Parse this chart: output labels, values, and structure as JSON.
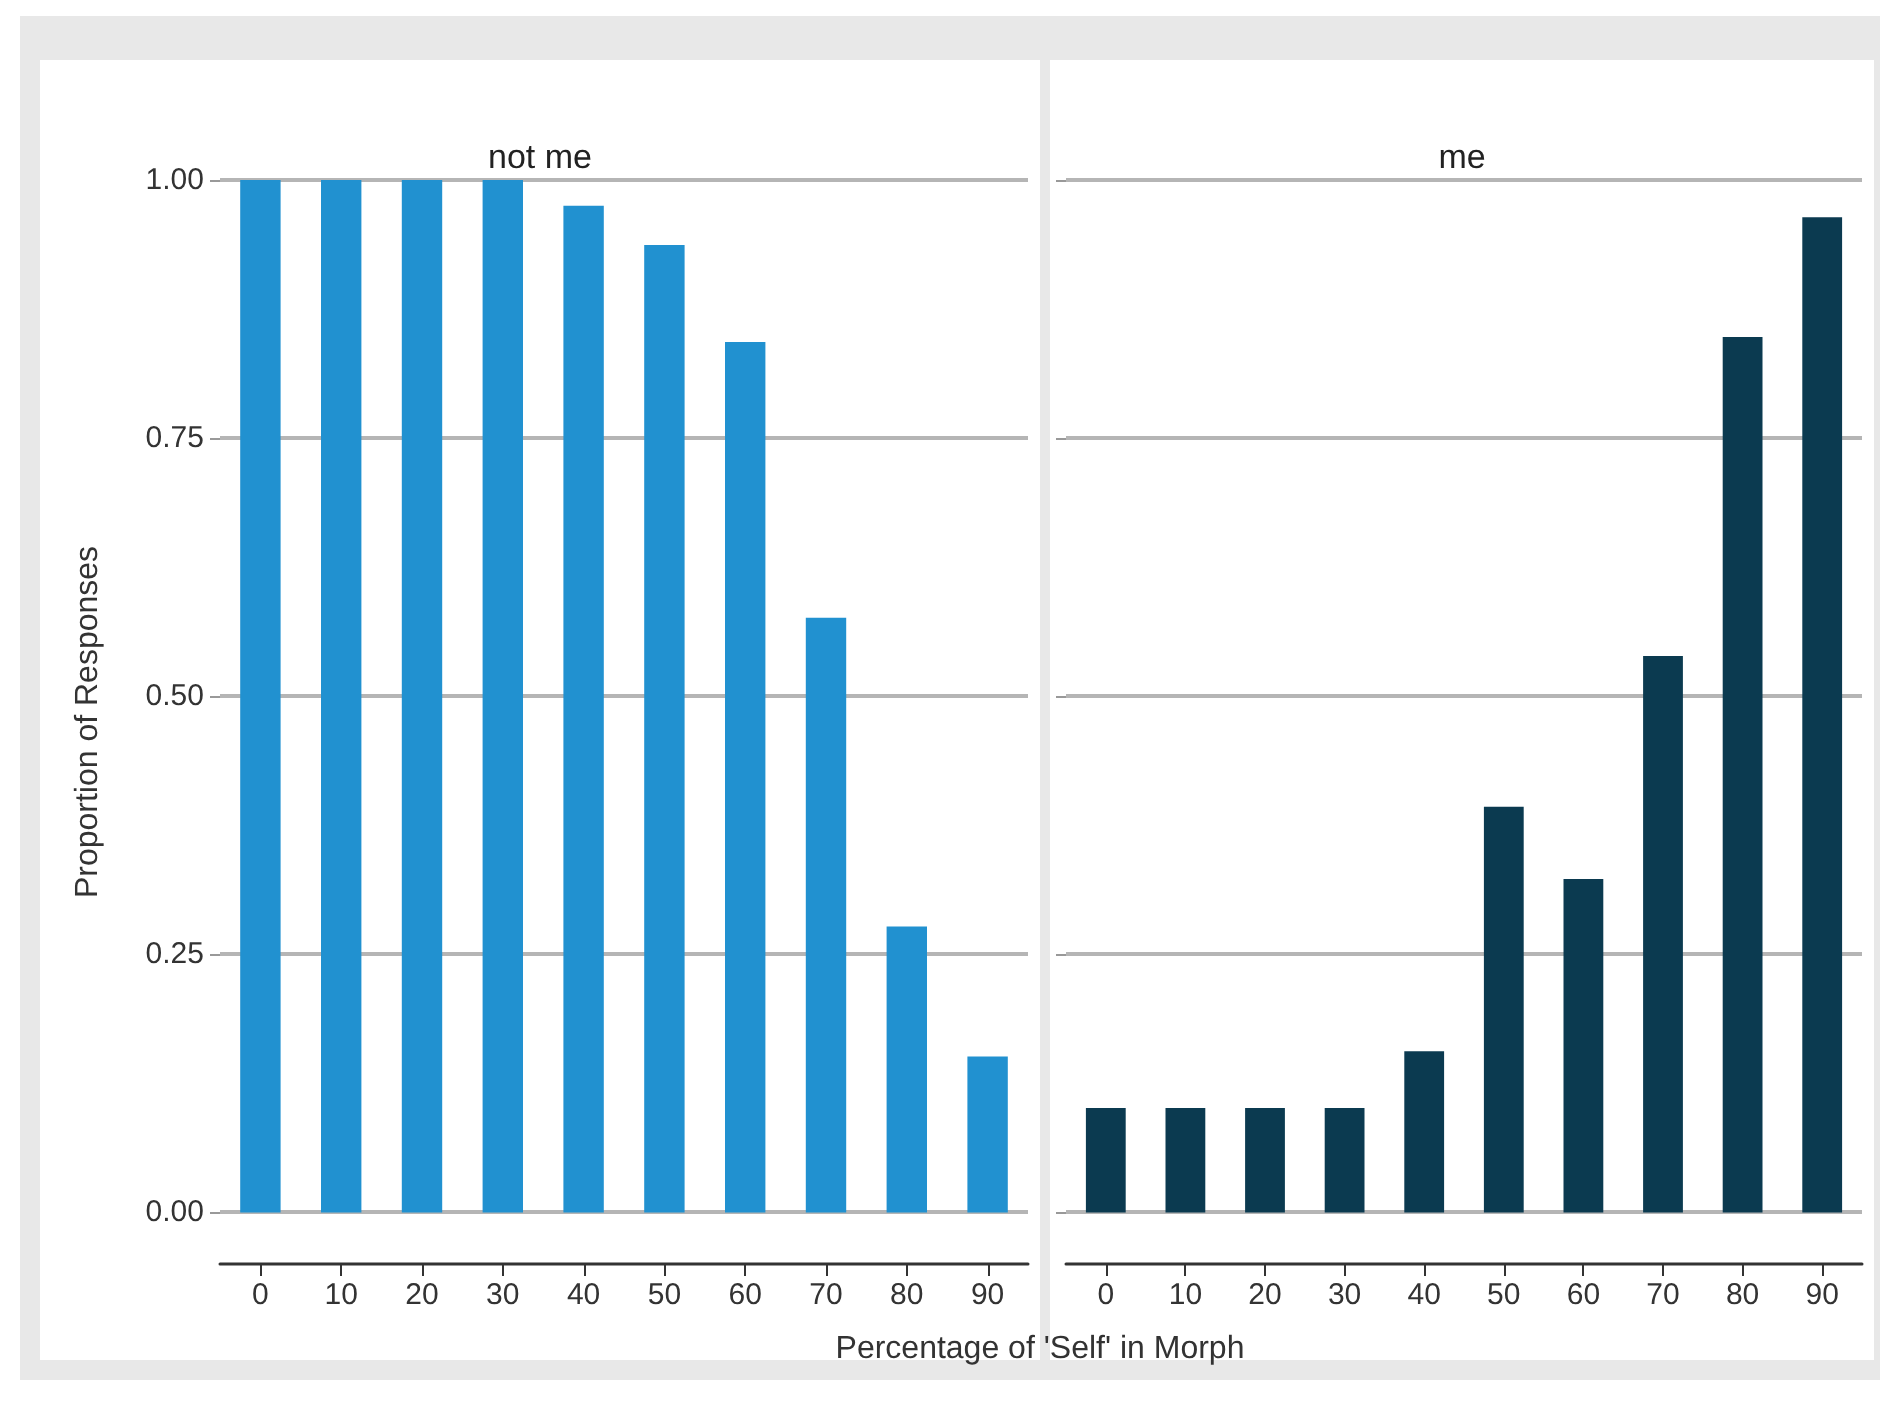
{
  "chart_data": [
    {
      "type": "bar",
      "title": "not me",
      "xlabel": "Percentage of 'Self' in Morph",
      "ylabel": "Proportion of Responses",
      "categories": [
        "0",
        "10",
        "20",
        "30",
        "40",
        "50",
        "60",
        "70",
        "80",
        "90"
      ],
      "values": [
        1.0,
        1.0,
        1.0,
        1.0,
        0.975,
        0.937,
        0.843,
        0.576,
        0.277,
        0.151
      ],
      "color": "#2191d0",
      "ylim": [
        -0.05,
        1.0
      ],
      "yticks": [
        {
          "value": 0,
          "label": "0.00"
        },
        {
          "value": 0.25,
          "label": "0.25"
        },
        {
          "value": 0.5,
          "label": "0.50"
        },
        {
          "value": 0.75,
          "label": "0.75"
        },
        {
          "value": 1,
          "label": "1.00"
        }
      ],
      "grid": "y"
    },
    {
      "type": "bar",
      "title": "me",
      "categories": [
        "0",
        "10",
        "20",
        "30",
        "40",
        "50",
        "60",
        "70",
        "80",
        "90"
      ],
      "values": [
        0.101,
        0.101,
        0.101,
        0.101,
        0.156,
        0.393,
        0.323,
        0.539,
        0.848,
        0.964
      ],
      "color": "#0b3a50",
      "ylim": [
        -0.05,
        1.0
      ],
      "yticks": [
        {
          "value": 0,
          "label": null
        },
        {
          "value": 0.25,
          "label": null
        },
        {
          "value": 0.5,
          "label": null
        },
        {
          "value": 0.75,
          "label": null
        },
        {
          "value": 1,
          "label": null
        }
      ],
      "grid": "y",
      "tick_labels": "x"
    }
  ]
}
